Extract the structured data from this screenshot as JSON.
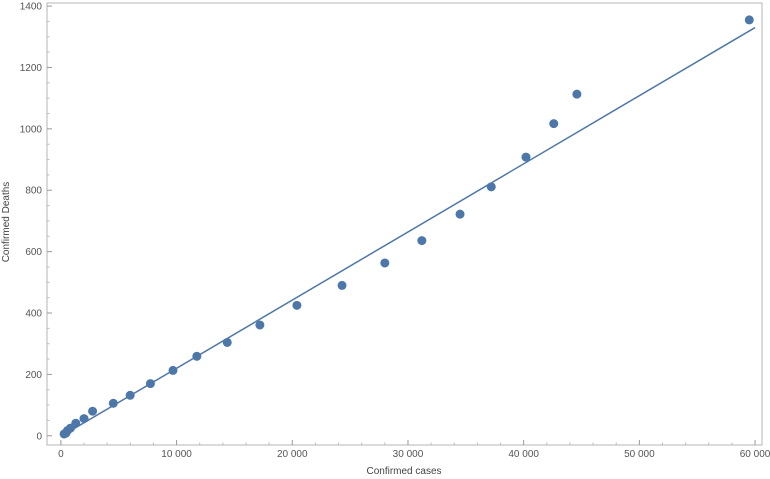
{
  "chart_data": {
    "type": "scatter",
    "title": "",
    "xlabel": "Confirmed cases",
    "ylabel": "Confirmed  Deaths",
    "xlim": [
      -1200,
      60600
    ],
    "ylim": [
      -30,
      1410
    ],
    "x_ticks": [
      0,
      10000,
      20000,
      30000,
      40000,
      50000,
      60000
    ],
    "x_tick_labels": [
      "0",
      "10 000",
      "20 000",
      "30 000",
      "40 000",
      "50 000",
      "60 000"
    ],
    "y_ticks": [
      0,
      200,
      400,
      600,
      800,
      1000,
      1200,
      1400
    ],
    "y_tick_labels": [
      "0",
      "200",
      "400",
      "600",
      "800",
      "1000",
      "1200",
      "1400"
    ],
    "grid": false,
    "legend": "none",
    "series": [
      {
        "x": [
          280,
          440,
          570,
          830,
          1290,
          2000,
          2740,
          4530,
          5990,
          7740,
          9690,
          11750,
          14380,
          17200,
          20400,
          24300,
          28000,
          31200,
          34500,
          37200,
          40200,
          42600,
          44600,
          59500
        ],
        "y": [
          6,
          9,
          17,
          25,
          41,
          56,
          80,
          106,
          132,
          170,
          213,
          259,
          304,
          361,
          425,
          490,
          563,
          636,
          722,
          811,
          908,
          1017,
          1113,
          1355
        ],
        "color": "#4e77a9",
        "marker": "circle"
      }
    ],
    "fit_line": {
      "type": "linear",
      "x": [
        0,
        60000
      ],
      "y": [
        -2,
        1330
      ],
      "color": "#4e77a9"
    }
  }
}
